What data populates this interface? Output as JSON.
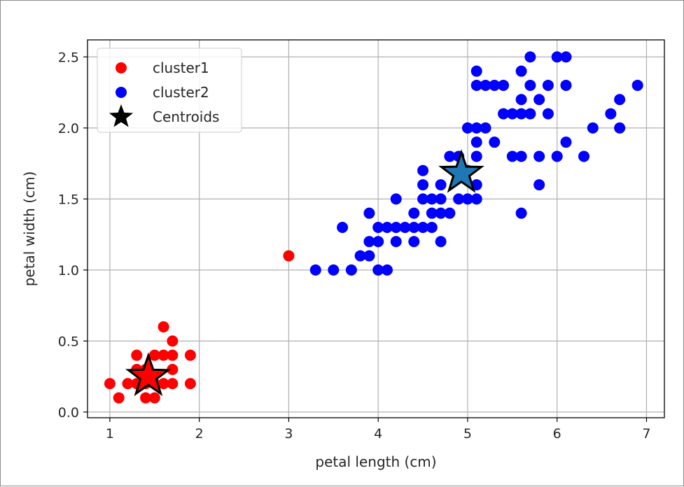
{
  "chart_data": {
    "type": "scatter",
    "title": "",
    "xlabel": "petal length (cm)",
    "ylabel": "petal width (cm)",
    "xlim": [
      0.75,
      7.2
    ],
    "ylim": [
      -0.04,
      2.62
    ],
    "xticks": [
      1,
      2,
      3,
      4,
      5,
      6,
      7
    ],
    "yticks": [
      0.0,
      0.5,
      1.0,
      1.5,
      2.0,
      2.5
    ],
    "xtick_labels": [
      "1",
      "2",
      "3",
      "4",
      "5",
      "6",
      "7"
    ],
    "ytick_labels": [
      "0.0",
      "0.5",
      "1.0",
      "1.5",
      "2.0",
      "2.5"
    ],
    "grid": true,
    "legend_position": "top-left",
    "series": [
      {
        "name": "cluster1",
        "color": "#ff0000",
        "marker": "circle",
        "points": [
          [
            1.0,
            0.2
          ],
          [
            1.1,
            0.1
          ],
          [
            1.2,
            0.2
          ],
          [
            1.3,
            0.2
          ],
          [
            1.3,
            0.3
          ],
          [
            1.3,
            0.4
          ],
          [
            1.4,
            0.1
          ],
          [
            1.4,
            0.2
          ],
          [
            1.4,
            0.3
          ],
          [
            1.5,
            0.1
          ],
          [
            1.5,
            0.2
          ],
          [
            1.5,
            0.4
          ],
          [
            1.6,
            0.2
          ],
          [
            1.6,
            0.4
          ],
          [
            1.6,
            0.6
          ],
          [
            1.7,
            0.2
          ],
          [
            1.7,
            0.3
          ],
          [
            1.7,
            0.4
          ],
          [
            1.7,
            0.5
          ],
          [
            1.9,
            0.2
          ],
          [
            1.9,
            0.4
          ],
          [
            3.0,
            1.1
          ]
        ]
      },
      {
        "name": "cluster2",
        "color": "#0000ff",
        "marker": "circle",
        "points": [
          [
            3.3,
            1.0
          ],
          [
            3.5,
            1.0
          ],
          [
            3.6,
            1.3
          ],
          [
            3.7,
            1.0
          ],
          [
            3.8,
            1.1
          ],
          [
            3.9,
            1.1
          ],
          [
            3.9,
            1.2
          ],
          [
            3.9,
            1.4
          ],
          [
            4.0,
            1.0
          ],
          [
            4.0,
            1.2
          ],
          [
            4.0,
            1.3
          ],
          [
            4.1,
            1.0
          ],
          [
            4.1,
            1.3
          ],
          [
            4.2,
            1.2
          ],
          [
            4.2,
            1.3
          ],
          [
            4.2,
            1.5
          ],
          [
            4.3,
            1.3
          ],
          [
            4.4,
            1.2
          ],
          [
            4.4,
            1.3
          ],
          [
            4.4,
            1.4
          ],
          [
            4.5,
            1.3
          ],
          [
            4.5,
            1.5
          ],
          [
            4.5,
            1.6
          ],
          [
            4.5,
            1.7
          ],
          [
            4.6,
            1.3
          ],
          [
            4.6,
            1.4
          ],
          [
            4.6,
            1.5
          ],
          [
            4.7,
            1.2
          ],
          [
            4.7,
            1.4
          ],
          [
            4.7,
            1.5
          ],
          [
            4.7,
            1.6
          ],
          [
            4.8,
            1.4
          ],
          [
            4.8,
            1.8
          ],
          [
            4.9,
            1.5
          ],
          [
            4.9,
            1.8
          ],
          [
            5.0,
            1.5
          ],
          [
            5.0,
            1.7
          ],
          [
            5.0,
            2.0
          ],
          [
            5.1,
            1.5
          ],
          [
            5.1,
            1.6
          ],
          [
            5.1,
            1.8
          ],
          [
            5.1,
            1.9
          ],
          [
            5.1,
            2.0
          ],
          [
            5.1,
            2.3
          ],
          [
            5.1,
            2.4
          ],
          [
            5.2,
            2.0
          ],
          [
            5.2,
            2.3
          ],
          [
            5.3,
            1.9
          ],
          [
            5.3,
            2.3
          ],
          [
            5.4,
            2.1
          ],
          [
            5.4,
            2.3
          ],
          [
            5.5,
            1.8
          ],
          [
            5.5,
            2.1
          ],
          [
            5.6,
            1.4
          ],
          [
            5.6,
            1.8
          ],
          [
            5.6,
            2.1
          ],
          [
            5.6,
            2.2
          ],
          [
            5.6,
            2.4
          ],
          [
            5.7,
            2.1
          ],
          [
            5.7,
            2.3
          ],
          [
            5.7,
            2.5
          ],
          [
            5.8,
            1.6
          ],
          [
            5.8,
            1.8
          ],
          [
            5.8,
            2.2
          ],
          [
            5.9,
            2.1
          ],
          [
            5.9,
            2.3
          ],
          [
            6.0,
            1.8
          ],
          [
            6.0,
            2.5
          ],
          [
            6.1,
            1.9
          ],
          [
            6.1,
            2.3
          ],
          [
            6.1,
            2.5
          ],
          [
            6.3,
            1.8
          ],
          [
            6.4,
            2.0
          ],
          [
            6.6,
            2.1
          ],
          [
            6.7,
            2.0
          ],
          [
            6.7,
            2.2
          ],
          [
            6.9,
            2.3
          ]
        ]
      },
      {
        "name": "Centroids",
        "color": "#000000",
        "marker": "star",
        "points": [
          {
            "x": 1.43,
            "y": 0.25,
            "fill": "#ff0000"
          },
          {
            "x": 4.93,
            "y": 1.68,
            "fill": "#1f77b4"
          }
        ]
      }
    ]
  }
}
